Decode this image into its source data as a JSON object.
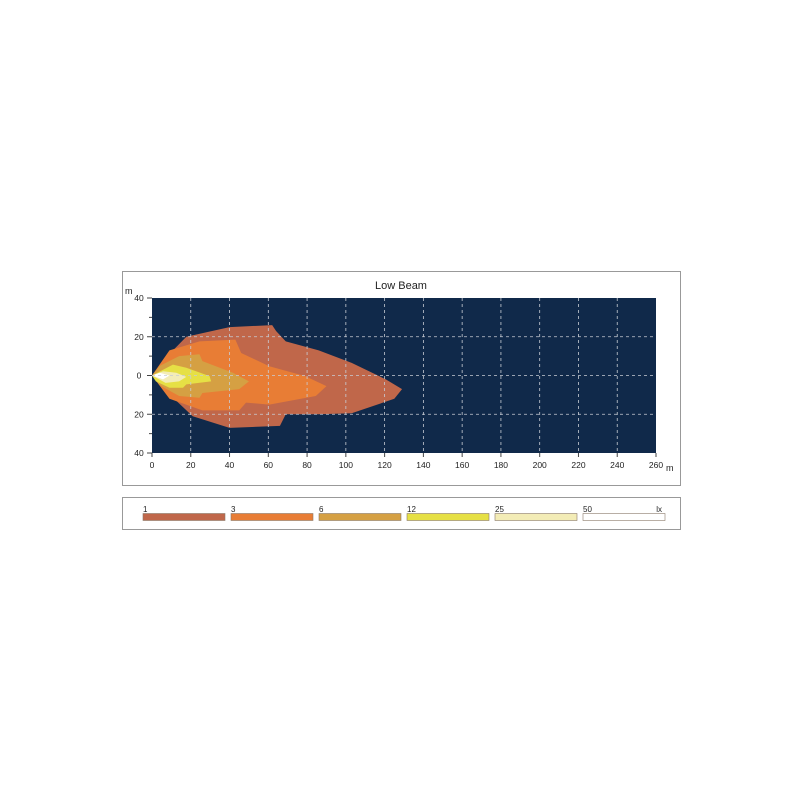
{
  "chart_data": {
    "type": "area",
    "title": "Low Beam",
    "xlabel": "m",
    "ylabel": "m",
    "xlim": [
      0,
      260
    ],
    "ylim": [
      -40,
      40
    ],
    "x_ticks": [
      0,
      20,
      40,
      60,
      80,
      100,
      120,
      140,
      160,
      180,
      200,
      220,
      240,
      260
    ],
    "y_ticks": [
      {
        "value": 40,
        "label": "40"
      },
      {
        "value": 20,
        "label": "20"
      },
      {
        "value": 0,
        "label": "0"
      },
      {
        "value": -20,
        "label": "20"
      },
      {
        "value": -40,
        "label": "40"
      }
    ],
    "grid": true,
    "background_color": "#10294a",
    "legend_unit": "lx",
    "series": [
      {
        "name": "1",
        "color": "#c0674a",
        "points": [
          [
            0,
            0
          ],
          [
            6,
            8
          ],
          [
            17.7,
            20
          ],
          [
            40,
            25
          ],
          [
            62,
            26
          ],
          [
            64,
            23
          ],
          [
            69,
            17.6
          ],
          [
            86,
            13
          ],
          [
            103,
            6.5
          ],
          [
            120.6,
            -2
          ],
          [
            129,
            -7
          ],
          [
            125,
            -12
          ],
          [
            103,
            -19.5
          ],
          [
            86,
            -20
          ],
          [
            69,
            -20
          ],
          [
            66,
            -26
          ],
          [
            40,
            -27
          ],
          [
            21,
            -21
          ],
          [
            4,
            -5
          ]
        ]
      },
      {
        "name": "3",
        "color": "#e87d35",
        "points": [
          [
            0,
            0
          ],
          [
            9,
            13
          ],
          [
            24.5,
            17.6
          ],
          [
            43,
            18.5
          ],
          [
            46,
            11.6
          ],
          [
            60.5,
            4.8
          ],
          [
            79,
            -0.3
          ],
          [
            90,
            -5.5
          ],
          [
            84.5,
            -10.6
          ],
          [
            60.5,
            -15
          ],
          [
            48.5,
            -14
          ],
          [
            45,
            -18
          ],
          [
            26,
            -18
          ],
          [
            9,
            -12
          ]
        ]
      },
      {
        "name": "6",
        "color": "#d5a043",
        "points": [
          [
            0,
            0
          ],
          [
            4,
            5
          ],
          [
            14,
            10
          ],
          [
            24.5,
            11
          ],
          [
            26,
            7.4
          ],
          [
            41.7,
            1.4
          ],
          [
            50,
            -3
          ],
          [
            45,
            -7
          ],
          [
            26,
            -9
          ],
          [
            24.5,
            -11.5
          ],
          [
            14,
            -10.6
          ],
          [
            4,
            -5
          ]
        ]
      },
      {
        "name": "12",
        "color": "#e6e045",
        "points": [
          [
            0,
            0
          ],
          [
            5.7,
            3
          ],
          [
            10.8,
            5.6
          ],
          [
            17.7,
            4
          ],
          [
            29.7,
            -0.3
          ],
          [
            30.5,
            -3
          ],
          [
            17.7,
            -4.6
          ],
          [
            16,
            -6.3
          ],
          [
            9,
            -6.3
          ],
          [
            2,
            -3
          ]
        ]
      },
      {
        "name": "25",
        "color": "#f3ecb6",
        "points": [
          [
            0,
            0
          ],
          [
            5.7,
            2.2
          ],
          [
            12.5,
            1.4
          ],
          [
            17.7,
            -0.7
          ],
          [
            14,
            -3
          ],
          [
            7,
            -3.8
          ]
        ]
      },
      {
        "name": "50",
        "color": "#ffffff",
        "points": [
          [
            0,
            0
          ],
          [
            4,
            1.4
          ],
          [
            9,
            0
          ],
          [
            5.7,
            -2
          ]
        ]
      }
    ]
  }
}
